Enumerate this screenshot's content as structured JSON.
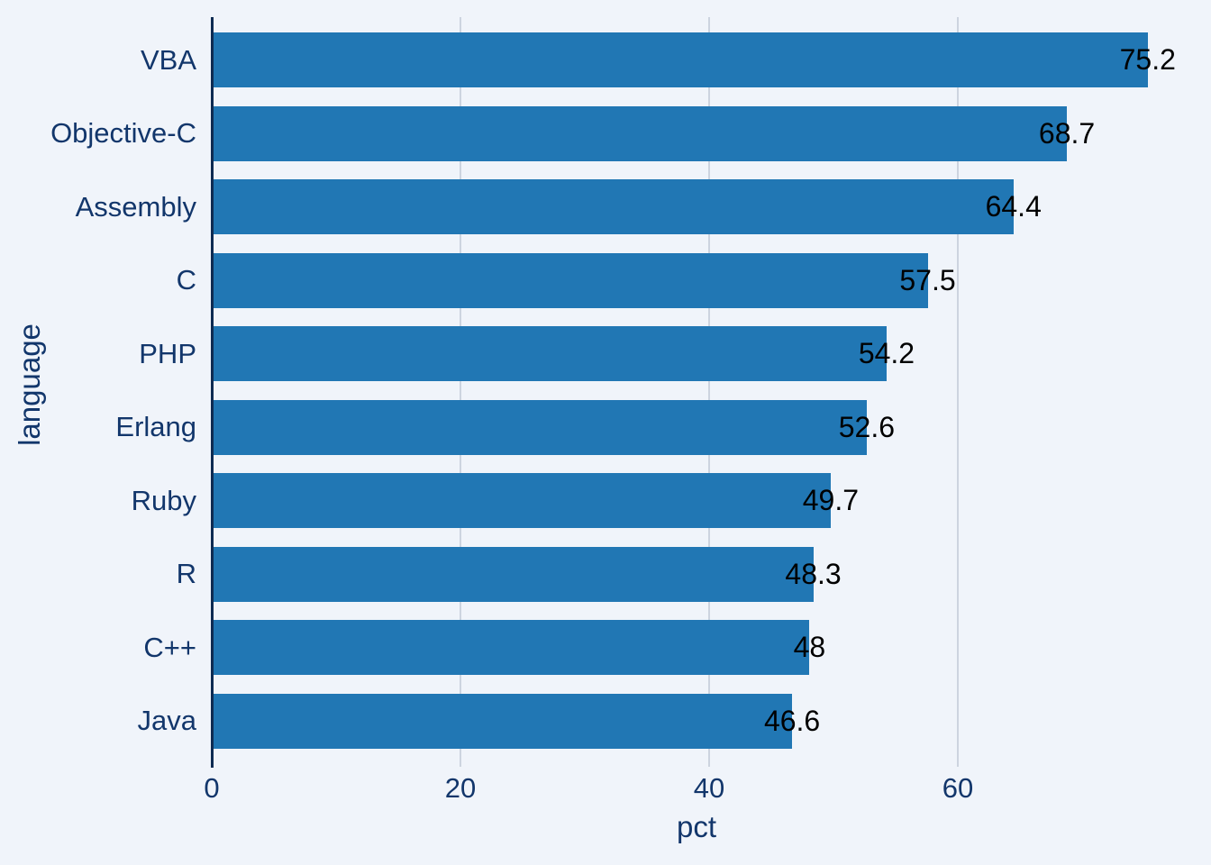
{
  "chart_data": {
    "type": "bar",
    "orientation": "horizontal",
    "title": "",
    "xlabel": "pct",
    "ylabel": "language",
    "categories": [
      "VBA",
      "Objective-C",
      "Assembly",
      "C",
      "PHP",
      "Erlang",
      "Ruby",
      "R",
      "C++",
      "Java"
    ],
    "values": [
      75.2,
      68.7,
      64.4,
      57.5,
      54.2,
      52.6,
      49.7,
      48.3,
      48,
      46.6
    ],
    "value_labels": [
      "75.2",
      "68.7",
      "64.4",
      "57.5",
      "54.2",
      "52.6",
      "49.7",
      "48.3",
      "48",
      "46.6"
    ],
    "series": [
      {
        "name": "pct",
        "values": [
          75.2,
          68.7,
          64.4,
          57.5,
          54.2,
          52.6,
          49.7,
          48.3,
          48,
          46.6
        ]
      }
    ],
    "xticks": [
      0,
      20,
      40,
      60
    ],
    "xtick_labels": [
      "0",
      "20",
      "40",
      "60"
    ],
    "xlim": [
      0,
      78
    ],
    "grid": "vertical-gridlines-at-xticks",
    "legend": "none",
    "colors": {
      "bar": "#2177b4",
      "background": "#f0f4fa",
      "axis_line": "#0e2b52",
      "axis_text": "#12366b",
      "value_text": "#000000",
      "gridline": "#cdd4df"
    }
  }
}
